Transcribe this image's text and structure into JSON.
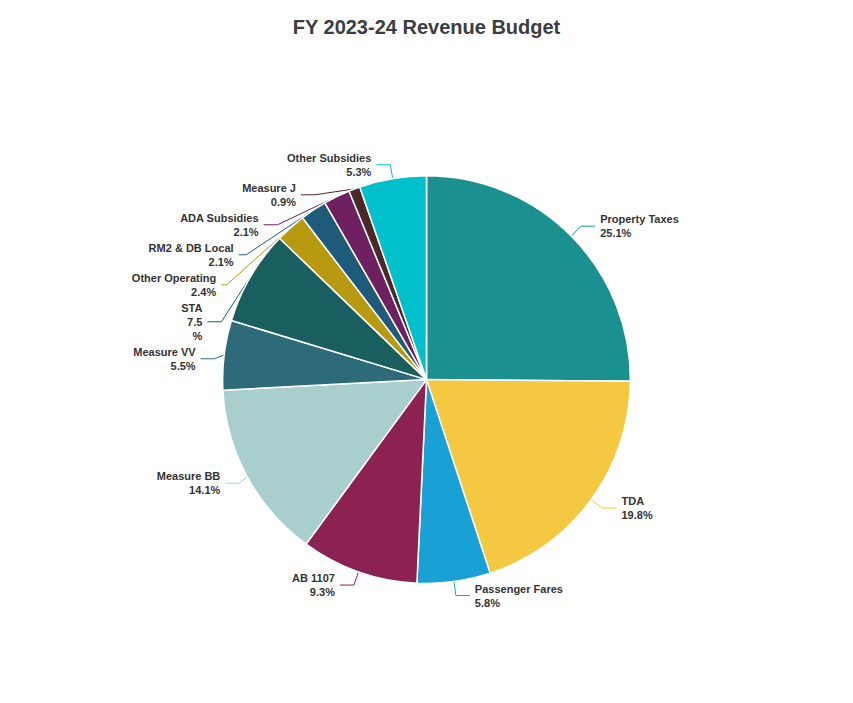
{
  "chart_data": {
    "type": "pie",
    "title": "FY 2023-24 Revenue Budget",
    "categories": [
      "Property Taxes",
      "TDA",
      "Passenger Fares",
      "AB 1107",
      "Measure BB",
      "Measure VV",
      "STA",
      "Other Operating",
      "RM2 & DB Local",
      "ADA Subsidies",
      "Measure J",
      "Other Subsidies"
    ],
    "values": [
      25.1,
      19.8,
      5.8,
      9.3,
      14.1,
      5.5,
      7.5,
      2.4,
      2.1,
      2.1,
      0.9,
      5.3
    ],
    "value_labels": [
      "25.1%",
      "19.8%",
      "5.8%",
      "9.3%",
      "14.1%",
      "5.5%",
      "7.5\n%",
      "2.4%",
      "2.1%",
      "2.1%",
      "0.9%",
      "5.3%"
    ],
    "colors": [
      "#1a9090",
      "#f5c842",
      "#19a0d4",
      "#8b2252",
      "#a8cece",
      "#2e6b7a",
      "#1a5f5f",
      "#b89a10",
      "#1e5a7a",
      "#6e2060",
      "#4a2828",
      "#00c0cc"
    ],
    "data_labels": true,
    "legend": false
  }
}
